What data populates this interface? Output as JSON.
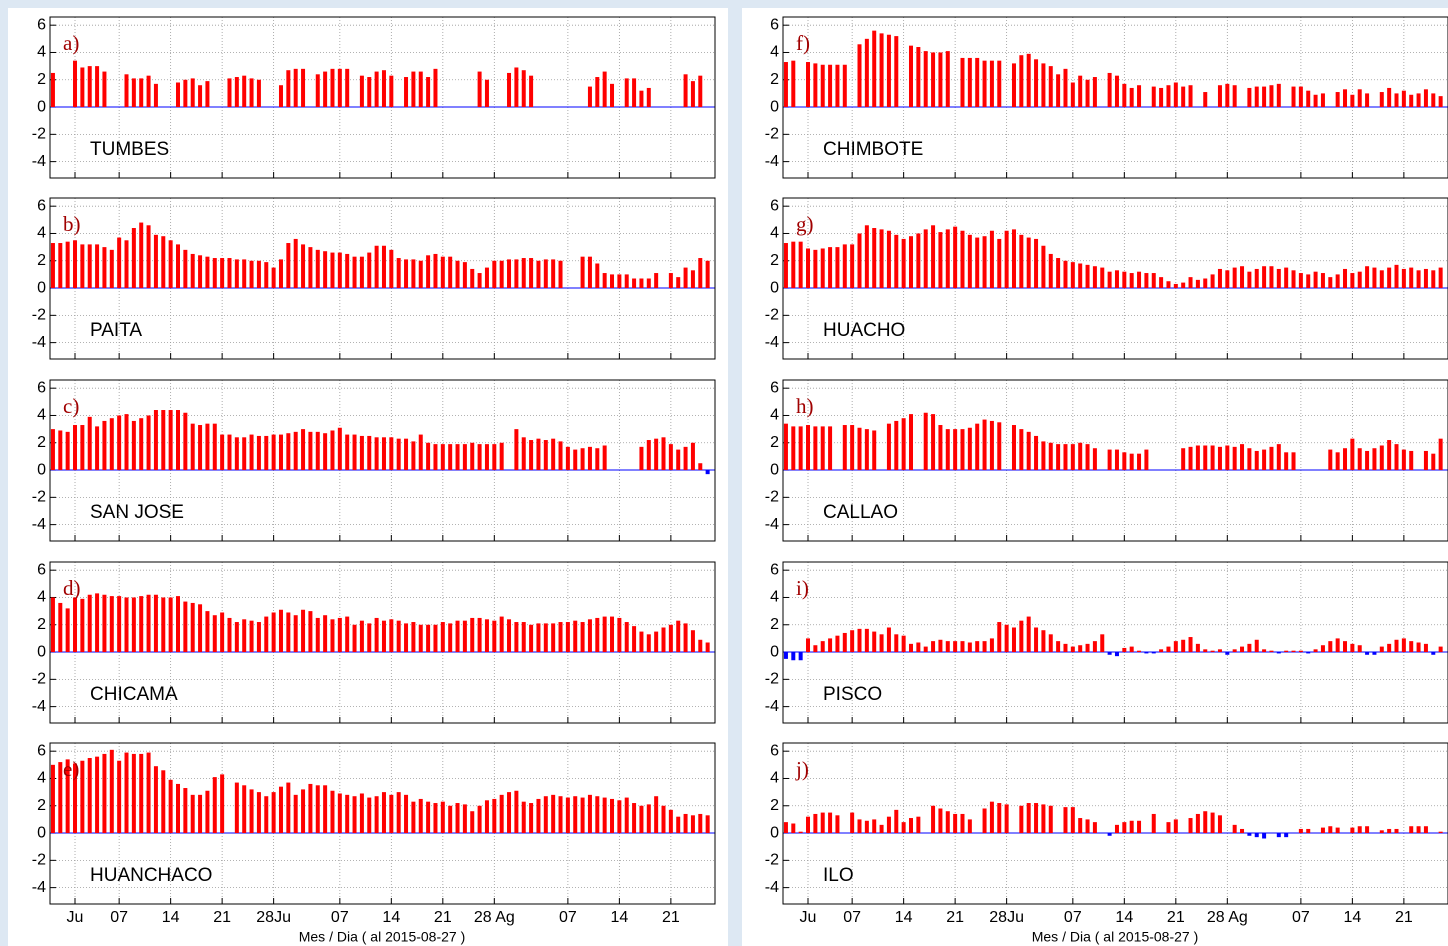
{
  "chart_data": {
    "type": "bar",
    "xlabel": "Mes / Dia  ( al 2015-08-27 )",
    "x": [
      -3,
      -2,
      -1,
      0,
      1,
      2,
      3,
      4,
      5,
      6,
      7,
      8,
      9,
      10,
      11,
      12,
      13,
      14,
      15,
      16,
      17,
      18,
      19,
      20,
      21,
      22,
      23,
      24,
      25,
      26,
      27,
      28,
      29,
      30,
      31,
      32,
      33,
      34,
      35,
      36,
      37,
      38,
      39,
      40,
      41,
      42,
      43,
      44,
      45,
      46,
      47,
      48,
      49,
      50,
      51,
      52,
      53,
      54,
      55,
      56,
      57,
      58,
      59,
      60,
      61,
      62,
      63,
      64,
      65,
      66,
      67,
      68,
      69,
      70,
      71,
      72,
      73,
      74,
      75,
      76,
      77,
      78,
      79,
      80,
      81,
      82,
      83,
      84,
      85,
      86
    ],
    "xlim": [
      -3.4,
      87.0
    ],
    "xticks": [
      {
        "value": 0,
        "label": "Ju"
      },
      {
        "value": 6,
        "label": "07"
      },
      {
        "value": 13,
        "label": "14"
      },
      {
        "value": 20,
        "label": "21"
      },
      {
        "value": 27,
        "label": "28Ju"
      },
      {
        "value": 36,
        "label": "07"
      },
      {
        "value": 43,
        "label": "14"
      },
      {
        "value": 50,
        "label": "21"
      },
      {
        "value": 57,
        "label": "28 Ag"
      },
      {
        "value": 67,
        "label": "07"
      },
      {
        "value": 74,
        "label": "14"
      },
      {
        "value": 81,
        "label": "21"
      }
    ],
    "ylim": [
      -5.2,
      6.6
    ],
    "yticks": [
      -4,
      -2,
      0,
      2,
      4,
      6
    ],
    "grid": true,
    "color_positive": "#ff0000",
    "color_negative": "#0000ff",
    "panels": [
      {
        "label": "a)",
        "name": "TUMBES",
        "values": [
          2.5,
          null,
          null,
          3.4,
          2.9,
          3.0,
          3.0,
          2.6,
          null,
          null,
          2.4,
          2.1,
          2.1,
          2.3,
          1.7,
          null,
          null,
          1.8,
          2.0,
          2.1,
          1.6,
          1.9,
          null,
          null,
          2.1,
          2.2,
          2.3,
          2.1,
          2.0,
          null,
          null,
          1.6,
          2.7,
          2.8,
          2.8,
          null,
          2.4,
          2.6,
          2.8,
          2.8,
          2.8,
          null,
          2.3,
          2.2,
          2.6,
          2.7,
          2.3,
          null,
          2.2,
          2.6,
          2.6,
          2.2,
          2.8,
          null,
          null,
          null,
          null,
          null,
          2.6,
          2.0,
          null,
          null,
          2.5,
          2.9,
          2.7,
          2.3,
          null,
          null,
          null,
          null,
          null,
          null,
          null,
          1.5,
          2.2,
          2.6,
          1.7,
          null,
          2.1,
          2.1,
          1.2,
          1.4,
          null,
          null,
          null,
          null,
          2.4,
          1.9,
          2.3,
          null
        ]
      },
      {
        "label": "b)",
        "name": "PAITA",
        "values": [
          3.3,
          3.3,
          3.4,
          3.5,
          3.2,
          3.2,
          3.2,
          3.0,
          2.8,
          3.7,
          3.5,
          4.4,
          4.8,
          4.6,
          3.9,
          3.8,
          3.5,
          3.2,
          2.8,
          2.5,
          2.4,
          2.3,
          2.2,
          2.2,
          2.2,
          2.1,
          2.1,
          2.0,
          2.0,
          1.9,
          1.5,
          2.1,
          3.3,
          3.6,
          3.2,
          3.0,
          2.8,
          2.7,
          2.6,
          2.6,
          2.5,
          2.3,
          2.3,
          2.6,
          3.1,
          3.1,
          2.8,
          2.2,
          2.1,
          2.1,
          2.0,
          2.4,
          2.5,
          2.3,
          2.3,
          2.0,
          1.9,
          1.4,
          1.1,
          1.5,
          2.0,
          2.0,
          2.1,
          2.1,
          2.2,
          2.2,
          2.0,
          2.1,
          2.1,
          2.0,
          null,
          null,
          2.3,
          2.3,
          1.8,
          1.1,
          1.0,
          1.0,
          1.0,
          0.7,
          0.7,
          0.7,
          1.1,
          null,
          1.1,
          0.8,
          1.5,
          1.3,
          2.2,
          2.0
        ]
      },
      {
        "label": "c)",
        "name": "SAN JOSE",
        "values": [
          3.0,
          2.9,
          2.8,
          3.3,
          3.3,
          3.9,
          3.2,
          3.6,
          3.8,
          4.0,
          4.1,
          3.6,
          3.8,
          4.0,
          4.4,
          4.4,
          4.4,
          4.4,
          4.2,
          3.4,
          3.3,
          3.4,
          3.4,
          2.6,
          2.6,
          2.4,
          2.4,
          2.6,
          2.5,
          2.5,
          2.6,
          2.6,
          2.7,
          2.8,
          3.0,
          2.8,
          2.8,
          2.7,
          2.9,
          3.1,
          2.6,
          2.6,
          2.5,
          2.5,
          2.4,
          2.4,
          2.4,
          2.3,
          2.3,
          2.1,
          2.6,
          2.0,
          1.9,
          1.9,
          1.9,
          1.9,
          1.9,
          2.0,
          1.9,
          1.9,
          1.9,
          2.0,
          null,
          3.0,
          2.4,
          2.2,
          2.3,
          2.2,
          2.3,
          2.1,
          1.7,
          1.5,
          1.6,
          1.7,
          1.6,
          1.8,
          null,
          null,
          null,
          null,
          1.7,
          2.2,
          2.3,
          2.4,
          1.9,
          1.5,
          1.7,
          2.0,
          0.5,
          -0.3
        ]
      },
      {
        "label": "d)",
        "name": "CHICAMA",
        "values": [
          4.0,
          3.6,
          3.2,
          4.0,
          3.9,
          4.2,
          4.3,
          4.2,
          4.1,
          4.1,
          4.0,
          4.0,
          4.1,
          4.2,
          4.2,
          4.0,
          4.0,
          4.1,
          3.7,
          3.6,
          3.5,
          3.0,
          2.7,
          2.9,
          2.5,
          2.2,
          2.4,
          2.3,
          2.2,
          2.6,
          2.9,
          3.1,
          2.9,
          2.7,
          3.1,
          3.0,
          2.5,
          2.7,
          2.4,
          2.5,
          2.6,
          2.0,
          2.3,
          2.1,
          2.5,
          2.3,
          2.4,
          2.3,
          2.1,
          2.2,
          2.0,
          2.0,
          2.0,
          2.2,
          2.1,
          2.3,
          2.3,
          2.5,
          2.5,
          2.4,
          2.3,
          2.6,
          2.4,
          2.2,
          2.2,
          2.0,
          2.1,
          2.1,
          2.1,
          2.2,
          2.2,
          2.3,
          2.2,
          2.4,
          2.5,
          2.6,
          2.6,
          2.5,
          2.2,
          1.9,
          1.5,
          1.3,
          1.5,
          1.8,
          2.0,
          2.3,
          2.1,
          1.6,
          0.9,
          0.7
        ]
      },
      {
        "label": "e)",
        "name": "HUANCHACO",
        "values": [
          5.0,
          5.2,
          5.4,
          5.1,
          5.3,
          5.5,
          5.6,
          5.8,
          6.1,
          5.3,
          5.9,
          5.8,
          5.8,
          5.9,
          4.9,
          4.6,
          3.9,
          3.6,
          3.3,
          2.8,
          2.8,
          3.1,
          4.1,
          4.3,
          null,
          3.7,
          3.5,
          3.2,
          3.0,
          2.7,
          3.0,
          3.4,
          3.7,
          2.8,
          3.2,
          3.6,
          3.5,
          3.5,
          3.1,
          2.9,
          2.8,
          2.7,
          2.9,
          2.6,
          2.7,
          3.0,
          2.8,
          3.0,
          2.8,
          2.3,
          2.5,
          2.3,
          2.2,
          2.3,
          2.0,
          2.2,
          2.1,
          1.6,
          2.0,
          2.4,
          2.5,
          2.8,
          3.0,
          3.1,
          2.3,
          2.2,
          2.5,
          2.7,
          2.8,
          2.7,
          2.6,
          2.7,
          2.6,
          2.8,
          2.7,
          2.6,
          2.5,
          2.4,
          2.6,
          2.2,
          2.0,
          2.1,
          2.7,
          2.0,
          1.7,
          1.2,
          1.4,
          1.3,
          1.4,
          1.3
        ]
      },
      {
        "label": "f)",
        "name": "CHIMBOTE",
        "values": [
          3.3,
          3.4,
          null,
          3.3,
          3.2,
          3.1,
          3.1,
          3.1,
          3.1,
          null,
          4.6,
          5.0,
          5.6,
          5.4,
          5.3,
          5.2,
          null,
          4.5,
          4.4,
          4.1,
          4.0,
          4.0,
          4.1,
          null,
          3.6,
          3.6,
          3.6,
          3.4,
          3.4,
          3.4,
          null,
          3.2,
          3.8,
          3.9,
          3.5,
          3.2,
          3.0,
          2.4,
          2.8,
          1.8,
          2.3,
          2.0,
          2.2,
          null,
          2.5,
          2.3,
          1.7,
          1.4,
          1.6,
          null,
          1.5,
          1.4,
          1.6,
          1.8,
          1.5,
          1.6,
          null,
          1.1,
          null,
          1.6,
          1.7,
          1.6,
          null,
          1.4,
          1.5,
          1.5,
          1.6,
          1.7,
          null,
          1.5,
          1.5,
          1.2,
          0.9,
          1.0,
          null,
          1.1,
          1.3,
          0.9,
          1.3,
          1.0,
          null,
          1.1,
          1.4,
          1.0,
          1.2,
          0.9,
          1.0,
          1.3,
          1.0,
          0.8
        ]
      },
      {
        "label": "g)",
        "name": "HUACHO",
        "values": [
          3.3,
          3.4,
          3.4,
          2.9,
          2.8,
          2.9,
          3.0,
          3.0,
          3.2,
          3.2,
          4.0,
          4.6,
          4.4,
          4.3,
          4.2,
          3.9,
          3.6,
          3.8,
          4.0,
          4.3,
          4.6,
          4.1,
          4.3,
          4.5,
          4.2,
          3.9,
          3.7,
          3.8,
          4.2,
          3.6,
          4.2,
          4.3,
          3.9,
          3.7,
          3.6,
          3.1,
          2.5,
          2.2,
          2.0,
          1.9,
          1.8,
          1.7,
          1.6,
          1.5,
          1.2,
          1.3,
          1.2,
          1.1,
          1.2,
          1.1,
          1.1,
          0.8,
          0.5,
          0.3,
          0.4,
          0.8,
          0.6,
          0.7,
          1.0,
          1.4,
          1.3,
          1.5,
          1.6,
          1.2,
          1.4,
          1.6,
          1.6,
          1.4,
          1.5,
          1.3,
          1.1,
          1.0,
          1.2,
          1.1,
          0.8,
          1.0,
          1.4,
          1.1,
          1.2,
          1.6,
          1.5,
          1.3,
          1.5,
          1.7,
          1.4,
          1.5,
          1.3,
          1.4,
          1.3,
          1.5
        ]
      },
      {
        "label": "h)",
        "name": "CALLAO",
        "values": [
          3.4,
          3.2,
          3.2,
          3.3,
          3.2,
          3.2,
          3.2,
          null,
          3.3,
          3.3,
          3.1,
          3.0,
          2.9,
          null,
          3.4,
          3.6,
          3.8,
          4.1,
          null,
          4.2,
          4.1,
          3.3,
          3.0,
          3.0,
          3.0,
          3.1,
          3.4,
          3.7,
          3.6,
          3.5,
          null,
          3.3,
          3.0,
          2.8,
          2.5,
          2.1,
          2.0,
          1.9,
          1.9,
          1.9,
          2.0,
          1.9,
          1.6,
          null,
          1.5,
          1.5,
          1.3,
          1.2,
          1.2,
          1.5,
          null,
          null,
          null,
          null,
          1.6,
          1.7,
          1.8,
          1.8,
          1.8,
          1.7,
          1.8,
          1.7,
          1.9,
          1.6,
          1.4,
          1.5,
          1.7,
          1.9,
          1.3,
          1.3,
          null,
          null,
          null,
          null,
          1.5,
          1.3,
          1.6,
          2.3,
          1.6,
          1.4,
          1.6,
          1.8,
          2.2,
          1.9,
          1.5,
          1.4,
          null,
          1.4,
          1.2,
          2.3
        ]
      },
      {
        "label": "i)",
        "name": "PISCO",
        "values": [
          -0.5,
          -0.6,
          -0.6,
          1.0,
          0.5,
          0.8,
          1.0,
          1.2,
          1.4,
          1.6,
          1.7,
          1.7,
          1.5,
          1.3,
          1.8,
          1.3,
          1.2,
          0.6,
          0.7,
          0.4,
          0.8,
          0.9,
          0.8,
          0.8,
          0.8,
          0.7,
          0.8,
          0.8,
          1.0,
          2.2,
          2.0,
          1.8,
          2.3,
          2.6,
          1.8,
          1.6,
          1.3,
          0.8,
          0.6,
          0.4,
          0.5,
          0.6,
          0.8,
          1.3,
          -0.2,
          -0.3,
          0.3,
          0.4,
          0.1,
          -0.1,
          -0.1,
          0.2,
          0.4,
          0.8,
          0.9,
          1.1,
          0.6,
          0.2,
          0.1,
          0.2,
          -0.2,
          0.2,
          0.4,
          0.6,
          0.9,
          0.2,
          0.1,
          -0.1,
          0.1,
          0.1,
          0.1,
          -0.1,
          0.2,
          0.5,
          0.8,
          1.0,
          0.8,
          0.6,
          0.5,
          -0.2,
          -0.2,
          0.4,
          0.6,
          0.9,
          1.0,
          0.8,
          0.7,
          0.6,
          -0.2,
          0.4
        ]
      },
      {
        "label": "j)",
        "name": "ILO",
        "values": [
          0.8,
          0.7,
          0.1,
          1.2,
          1.4,
          1.5,
          1.5,
          1.3,
          null,
          1.5,
          1.0,
          0.9,
          1.0,
          0.6,
          1.2,
          1.7,
          0.8,
          1.1,
          1.2,
          null,
          2.0,
          1.8,
          1.6,
          1.4,
          1.4,
          1.0,
          null,
          1.8,
          2.3,
          2.2,
          2.1,
          null,
          2.0,
          2.2,
          2.2,
          2.1,
          2.0,
          null,
          1.9,
          1.9,
          1.1,
          1.0,
          0.8,
          null,
          -0.2,
          0.6,
          0.8,
          0.9,
          0.9,
          null,
          1.4,
          null,
          0.8,
          1.0,
          null,
          1.1,
          1.4,
          1.6,
          1.5,
          1.3,
          null,
          0.6,
          0.3,
          -0.2,
          -0.3,
          -0.4,
          null,
          -0.3,
          -0.3,
          null,
          0.3,
          0.3,
          null,
          0.4,
          0.5,
          0.4,
          null,
          0.4,
          0.5,
          0.5,
          null,
          0.2,
          0.3,
          0.3,
          null,
          0.5,
          0.5,
          0.5,
          null,
          0.1
        ]
      }
    ]
  }
}
